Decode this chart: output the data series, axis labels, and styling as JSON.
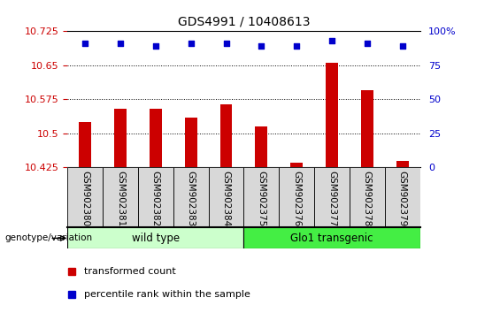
{
  "title": "GDS4991 / 10408613",
  "samples": [
    "GSM902380",
    "GSM902381",
    "GSM902382",
    "GSM902383",
    "GSM902384",
    "GSM902375",
    "GSM902376",
    "GSM902377",
    "GSM902378",
    "GSM902379"
  ],
  "bar_values": [
    10.525,
    10.555,
    10.555,
    10.535,
    10.565,
    10.515,
    10.435,
    10.655,
    10.595,
    10.44
  ],
  "percentile_values": [
    91,
    91,
    89,
    91,
    91,
    89,
    89,
    93,
    91,
    89
  ],
  "ymin": 10.425,
  "ymax": 10.725,
  "yticks": [
    10.425,
    10.5,
    10.575,
    10.65,
    10.725
  ],
  "y2min": 0,
  "y2max": 100,
  "y2ticks": [
    0,
    25,
    50,
    75,
    100
  ],
  "bar_color": "#cc0000",
  "dot_color": "#0000cc",
  "group1_label": "wild type",
  "group2_label": "Glo1 transgenic",
  "group1_indices": [
    0,
    1,
    2,
    3,
    4
  ],
  "group2_indices": [
    5,
    6,
    7,
    8,
    9
  ],
  "group1_color": "#ccffcc",
  "group2_color": "#44ee44",
  "genotype_label": "genotype/variation",
  "legend_bar_label": "transformed count",
  "legend_dot_label": "percentile rank within the sample",
  "tick_label_color_left": "#cc0000",
  "tick_label_color_right": "#0000cc",
  "sample_box_color": "#d8d8d8",
  "bar_width": 0.35
}
